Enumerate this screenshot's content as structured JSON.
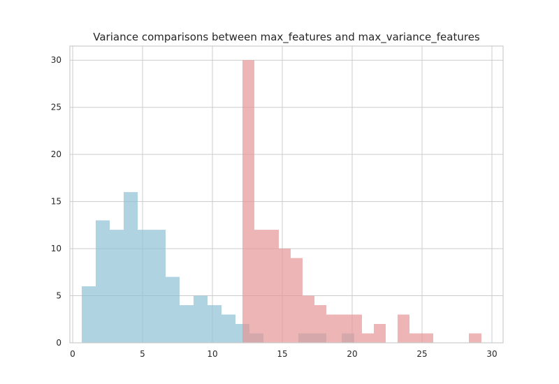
{
  "chart_data": {
    "type": "histogram",
    "title": "Variance comparisons between max_features and max_variance_features",
    "xlabel": "",
    "ylabel": "",
    "xlim": [
      -0.2,
      30.8
    ],
    "ylim": [
      0,
      31.5
    ],
    "xticks": [
      0,
      5,
      10,
      15,
      20,
      25,
      30
    ],
    "yticks": [
      0,
      5,
      10,
      15,
      20,
      25,
      30
    ],
    "grid": true,
    "legend": false,
    "series": [
      {
        "color": "#8fc0d6",
        "opacity": 0.7,
        "bins": [
          {
            "x0": 0.65,
            "x1": 1.65,
            "count": 6
          },
          {
            "x0": 1.65,
            "x1": 2.65,
            "count": 13
          },
          {
            "x0": 2.65,
            "x1": 3.65,
            "count": 12
          },
          {
            "x0": 3.65,
            "x1": 4.65,
            "count": 16
          },
          {
            "x0": 4.65,
            "x1": 5.65,
            "count": 12
          },
          {
            "x0": 5.65,
            "x1": 6.65,
            "count": 12
          },
          {
            "x0": 6.65,
            "x1": 7.65,
            "count": 7
          },
          {
            "x0": 7.65,
            "x1": 8.65,
            "count": 4
          },
          {
            "x0": 8.65,
            "x1": 9.65,
            "count": 5
          },
          {
            "x0": 9.65,
            "x1": 10.65,
            "count": 4
          },
          {
            "x0": 10.65,
            "x1": 11.65,
            "count": 3
          },
          {
            "x0": 11.65,
            "x1": 12.65,
            "count": 2
          },
          {
            "x0": 12.65,
            "x1": 13.65,
            "count": 1
          },
          {
            "x0": 16.15,
            "x1": 18.15,
            "count": 1
          },
          {
            "x0": 19.25,
            "x1": 20.15,
            "count": 1
          }
        ]
      },
      {
        "color": "#e69696",
        "opacity": 0.7,
        "bins": [
          {
            "x0": 12.15,
            "x1": 13.0,
            "count": 30
          },
          {
            "x0": 13.0,
            "x1": 14.75,
            "count": 12
          },
          {
            "x0": 14.75,
            "x1": 15.6,
            "count": 10
          },
          {
            "x0": 15.6,
            "x1": 16.45,
            "count": 9
          },
          {
            "x0": 16.45,
            "x1": 17.3,
            "count": 5
          },
          {
            "x0": 17.3,
            "x1": 18.15,
            "count": 4
          },
          {
            "x0": 18.15,
            "x1": 19.0,
            "count": 3
          },
          {
            "x0": 19.0,
            "x1": 20.7,
            "count": 3
          },
          {
            "x0": 20.7,
            "x1": 21.55,
            "count": 1
          },
          {
            "x0": 21.55,
            "x1": 22.4,
            "count": 2
          },
          {
            "x0": 22.4,
            "x1": 23.25,
            "count": 0
          },
          {
            "x0": 23.25,
            "x1": 24.1,
            "count": 3
          },
          {
            "x0": 24.1,
            "x1": 25.8,
            "count": 1
          },
          {
            "x0": 28.35,
            "x1": 29.25,
            "count": 1
          }
        ]
      }
    ]
  }
}
